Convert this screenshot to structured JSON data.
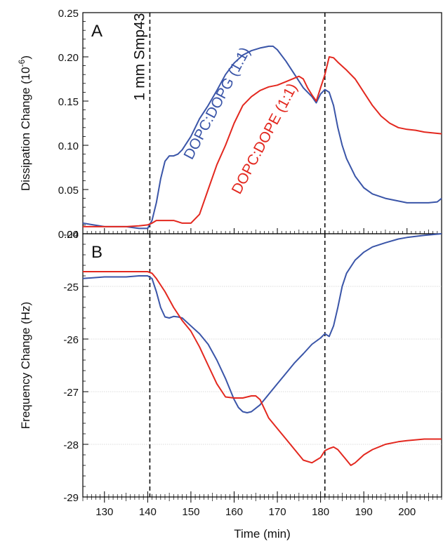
{
  "chart_data": [
    {
      "type": "line",
      "panel_label": "A",
      "ylabel": "Dissipation Change (10",
      "ylabel_sup": "-6",
      "ylabel_close": ")",
      "xlim": [
        125,
        208
      ],
      "ylim": [
        0,
        0.25
      ],
      "yticks": [
        0.0,
        0.05,
        0.1,
        0.15,
        0.2,
        0.25
      ],
      "ytick_labels": [
        "0.00",
        "0.05",
        "0.10",
        "0.15",
        "0.20",
        "0.25"
      ],
      "grid": false,
      "vlines": [
        140.5,
        181
      ],
      "annotations": [
        {
          "text": "1 mm Smp43",
          "x": 139.2,
          "y": 0.2,
          "rotation": -90,
          "color": "#111111"
        },
        {
          "text": "DOPC:DOPG (1:1)",
          "x": 157,
          "y": 0.145,
          "rotation": -62,
          "color": "#3a55a8"
        },
        {
          "text": "DOPC:DOPE (1:1)",
          "x": 168,
          "y": 0.105,
          "rotation": -62,
          "color": "#e3281f"
        }
      ],
      "series": [
        {
          "name": "DOPC:DOPG (1:1)",
          "color": "#3a55a8",
          "x": [
            125,
            130,
            135,
            138,
            140,
            141,
            142,
            143,
            144,
            145,
            146,
            147,
            148,
            150,
            152,
            154,
            156,
            158,
            160,
            162,
            164,
            166,
            168,
            169,
            170,
            172,
            174,
            176,
            178,
            179,
            180,
            181,
            182,
            183,
            184,
            185,
            186,
            188,
            190,
            192,
            195,
            198,
            200,
            205,
            207,
            208
          ],
          "y": [
            0.012,
            0.008,
            0.008,
            0.006,
            0.006,
            0.015,
            0.035,
            0.062,
            0.082,
            0.088,
            0.088,
            0.09,
            0.095,
            0.11,
            0.13,
            0.145,
            0.162,
            0.18,
            0.193,
            0.202,
            0.207,
            0.21,
            0.212,
            0.212,
            0.208,
            0.195,
            0.18,
            0.165,
            0.155,
            0.148,
            0.158,
            0.163,
            0.16,
            0.145,
            0.12,
            0.1,
            0.085,
            0.065,
            0.052,
            0.045,
            0.04,
            0.037,
            0.035,
            0.035,
            0.036,
            0.04
          ]
        },
        {
          "name": "DOPC:DOPE (1:1)",
          "color": "#e3281f",
          "x": [
            125,
            130,
            135,
            138,
            140,
            141,
            142,
            144,
            146,
            148,
            150,
            152,
            154,
            156,
            158,
            160,
            162,
            164,
            166,
            168,
            170,
            172,
            174,
            175,
            176,
            177,
            178,
            179,
            180,
            181,
            182,
            183,
            184,
            186,
            188,
            190,
            192,
            194,
            196,
            198,
            200,
            202,
            204,
            206,
            208
          ],
          "y": [
            0.008,
            0.008,
            0.008,
            0.009,
            0.01,
            0.012,
            0.015,
            0.015,
            0.015,
            0.012,
            0.012,
            0.022,
            0.05,
            0.078,
            0.1,
            0.125,
            0.145,
            0.155,
            0.162,
            0.166,
            0.168,
            0.172,
            0.176,
            0.178,
            0.175,
            0.165,
            0.157,
            0.15,
            0.165,
            0.18,
            0.2,
            0.199,
            0.194,
            0.185,
            0.175,
            0.16,
            0.145,
            0.133,
            0.125,
            0.12,
            0.118,
            0.117,
            0.115,
            0.114,
            0.113
          ]
        }
      ]
    },
    {
      "type": "line",
      "panel_label": "B",
      "ylabel": "Frequency Change (Hz)",
      "xlabel": "Time (min)",
      "xlim": [
        125,
        208
      ],
      "xticks": [
        130,
        140,
        150,
        160,
        170,
        180,
        190,
        200
      ],
      "xtick_labels": [
        "130",
        "140",
        "150",
        "160",
        "170",
        "180",
        "190",
        "200"
      ],
      "ylim": [
        -29,
        -24
      ],
      "yticks": [
        -29,
        -28,
        -27,
        -26,
        -25,
        -24
      ],
      "ytick_labels": [
        "-29",
        "-28",
        "-27",
        "-26",
        "-25",
        "-24"
      ],
      "grid": true,
      "vlines": [
        140.5,
        181
      ],
      "series": [
        {
          "name": "DOPC:DOPG (1:1)",
          "color": "#3a55a8",
          "x": [
            125,
            130,
            135,
            138,
            140,
            141,
            142,
            143,
            144,
            145,
            146,
            147,
            148,
            150,
            152,
            154,
            156,
            158,
            160,
            161,
            162,
            163,
            164,
            166,
            168,
            170,
            172,
            174,
            176,
            178,
            180,
            181,
            182,
            183,
            184,
            185,
            186,
            188,
            190,
            192,
            195,
            198,
            200,
            204,
            208
          ],
          "y": [
            -24.85,
            -24.82,
            -24.82,
            -24.8,
            -24.8,
            -24.85,
            -25.1,
            -25.4,
            -25.58,
            -25.6,
            -25.57,
            -25.58,
            -25.6,
            -25.75,
            -25.9,
            -26.1,
            -26.4,
            -26.75,
            -27.15,
            -27.3,
            -27.38,
            -27.4,
            -27.38,
            -27.25,
            -27.05,
            -26.85,
            -26.65,
            -26.45,
            -26.28,
            -26.1,
            -25.98,
            -25.9,
            -25.95,
            -25.75,
            -25.4,
            -25.0,
            -24.75,
            -24.5,
            -24.35,
            -24.25,
            -24.17,
            -24.1,
            -24.07,
            -24.03,
            -24.0
          ]
        },
        {
          "name": "DOPC:DOPE (1:1)",
          "color": "#e3281f",
          "x": [
            125,
            130,
            135,
            138,
            140,
            141,
            142,
            144,
            146,
            148,
            150,
            152,
            154,
            156,
            158,
            160,
            162,
            164,
            165,
            166,
            168,
            170,
            172,
            174,
            176,
            178,
            179,
            180,
            181,
            182,
            183,
            184,
            185,
            186,
            187,
            188,
            190,
            192,
            195,
            198,
            200,
            204,
            208
          ],
          "y": [
            -24.72,
            -24.72,
            -24.72,
            -24.72,
            -24.72,
            -24.75,
            -24.85,
            -25.1,
            -25.4,
            -25.65,
            -25.85,
            -26.15,
            -26.5,
            -26.85,
            -27.1,
            -27.12,
            -27.12,
            -27.08,
            -27.08,
            -27.15,
            -27.5,
            -27.7,
            -27.9,
            -28.1,
            -28.3,
            -28.35,
            -28.3,
            -28.25,
            -28.12,
            -28.08,
            -28.05,
            -28.1,
            -28.2,
            -28.3,
            -28.4,
            -28.35,
            -28.2,
            -28.1,
            -28.0,
            -27.95,
            -27.93,
            -27.9,
            -27.9
          ]
        }
      ]
    }
  ]
}
